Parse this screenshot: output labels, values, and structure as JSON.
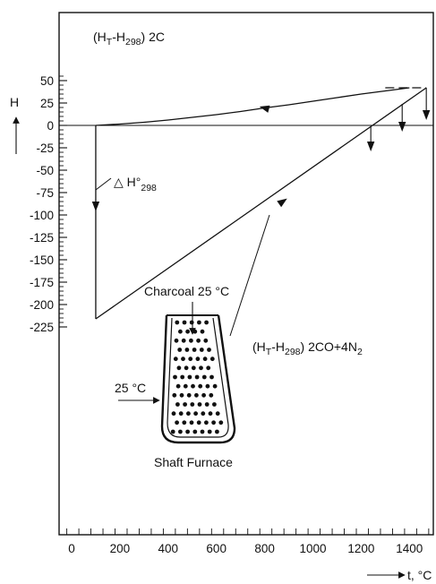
{
  "labels": {
    "y_axis": "H",
    "x_axis": "t, °C",
    "carbon_pre": "(H",
    "carbon_sub_t": "T",
    "carbon_mid": "-H",
    "carbon_sub_298": "298",
    "carbon_post": ") 2C",
    "gas_pre": "(H",
    "gas_sub_t": "T",
    "gas_mid": "-H",
    "gas_sub_298": "298",
    "gas_post": ") 2CO+4N",
    "gas_sub_2": "2",
    "delta_symbol": "△ H°",
    "delta_sub": "298",
    "charcoal": "Charcoal 25 °C",
    "air_in": "25 °C",
    "furnace": "Shaft Furnace"
  },
  "chart_data": {
    "type": "line",
    "xlabel": "t, °C",
    "ylabel": "H",
    "xlim": [
      -40,
      1510
    ],
    "ylim": [
      -230,
      58
    ],
    "x_ticks": [
      0,
      200,
      400,
      600,
      800,
      1000,
      1200,
      1400
    ],
    "y_ticks": [
      50,
      25,
      0,
      -25,
      -50,
      -75,
      -100,
      -125,
      -150,
      -175,
      -200,
      -225
    ],
    "series": [
      {
        "name": "(HT-H298) 2C",
        "x": [
          100,
          200,
          300,
          400,
          500,
          600,
          700,
          800,
          900,
          1000,
          1100,
          1200,
          1300,
          1400,
          1470
        ],
        "y": [
          0,
          1.5,
          3.5,
          6,
          9,
          12,
          15.5,
          19.5,
          23,
          27,
          31,
          35,
          38.5,
          42,
          42
        ]
      },
      {
        "name": "(HT-H298) 2CO+4N2",
        "x": [
          100,
          1470
        ],
        "y": [
          -216,
          42
        ]
      },
      {
        "name": "△ H°298",
        "x": [
          100,
          100
        ],
        "y": [
          0,
          -216
        ]
      }
    ]
  }
}
